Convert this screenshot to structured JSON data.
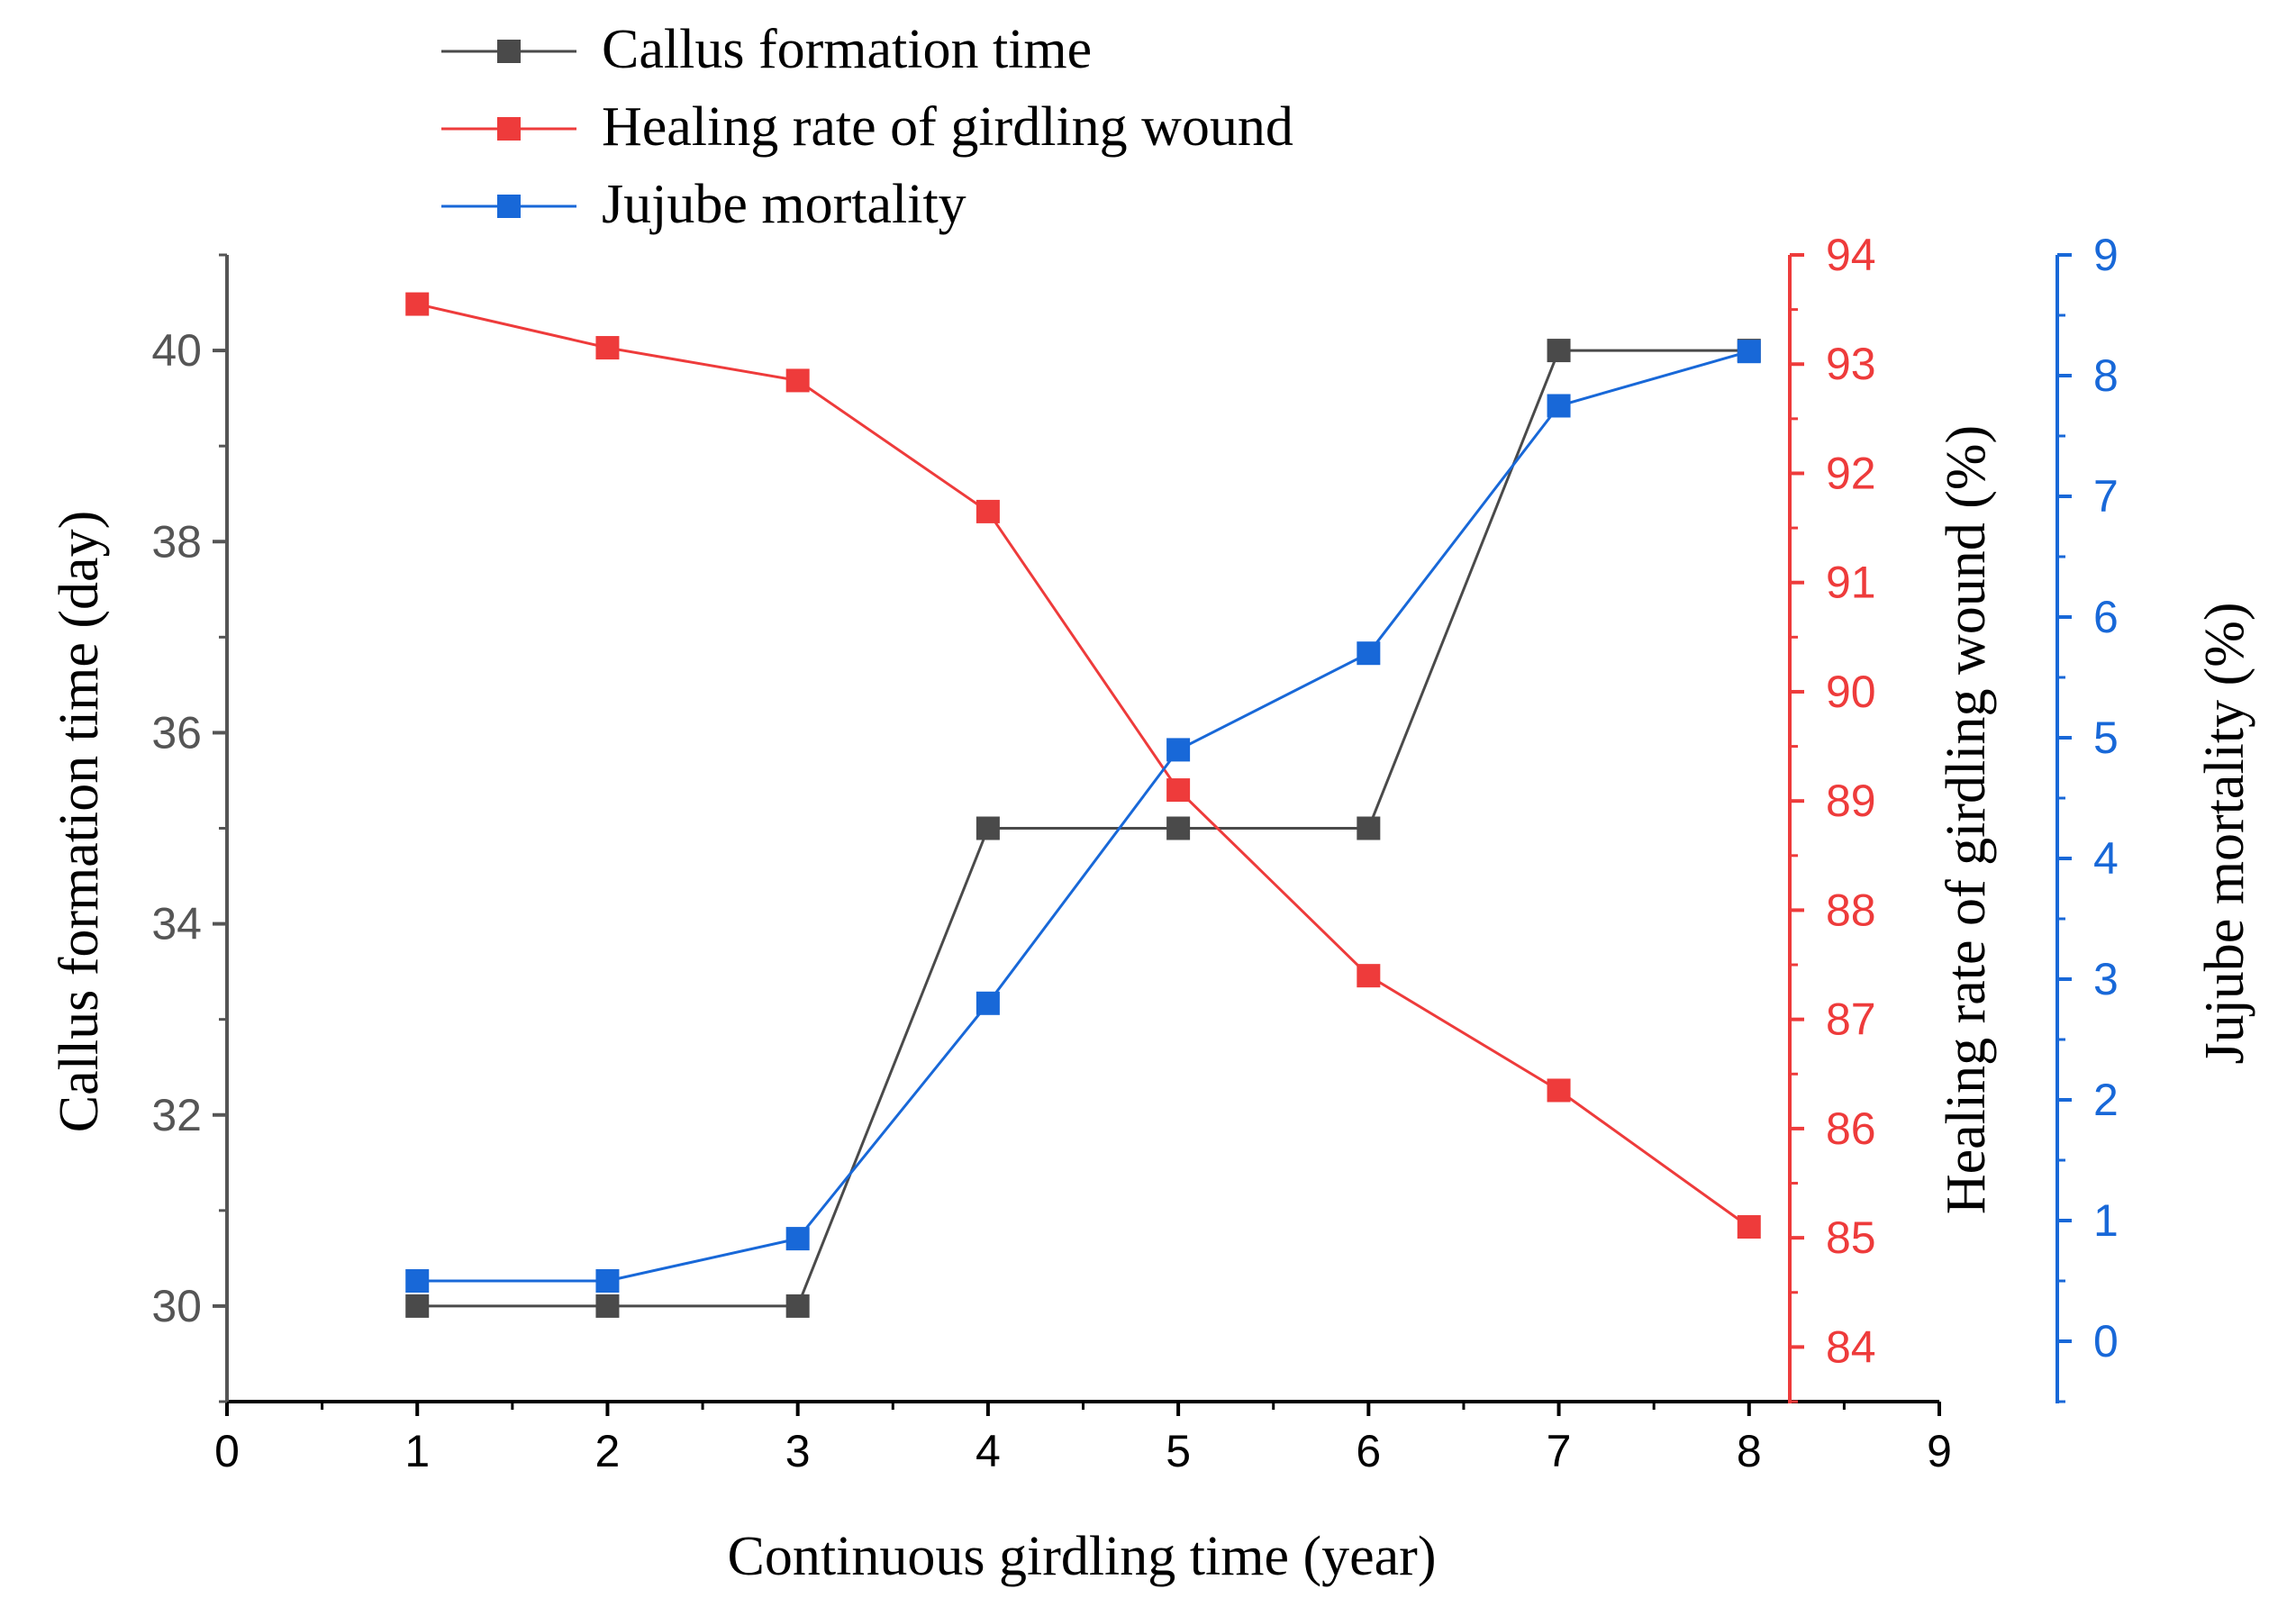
{
  "chart_data": {
    "type": "line",
    "title": "",
    "xlabel": "Continuous girdling time (year)",
    "xlim": [
      0,
      9
    ],
    "xticks": [
      0,
      1,
      2,
      3,
      4,
      5,
      6,
      7,
      8,
      9
    ],
    "x": [
      1,
      2,
      3,
      4,
      5,
      6,
      7,
      8
    ],
    "grid": false,
    "legend_position": "top-center",
    "axes": {
      "left": {
        "label": "Callus formation time (day)",
        "min": 29,
        "max": 41,
        "ticks": [
          30,
          32,
          34,
          36,
          38,
          40
        ],
        "color": "#000000",
        "tick_color": "#555555"
      },
      "right1": {
        "label": "Healing rate of girdling wound (%)",
        "min": 83.5,
        "max": 94,
        "ticks": [
          84,
          85,
          86,
          87,
          88,
          89,
          90,
          91,
          92,
          93,
          94
        ],
        "color": "#e8393b"
      },
      "right2": {
        "label": "Jujube mortality (%)",
        "min": -0.5,
        "max": 9,
        "ticks": [
          0,
          1,
          2,
          3,
          4,
          5,
          6,
          7,
          8,
          9
        ],
        "color": "#1868d8"
      }
    },
    "series": [
      {
        "name": "Callus formation time",
        "axis": "left",
        "color": "#4a4a4a",
        "values": [
          30,
          30,
          30,
          35,
          35,
          35,
          40,
          40
        ]
      },
      {
        "name": "Healing rate of girdling wound",
        "axis": "right1",
        "color": "#ee3b3b",
        "values": [
          93.55,
          93.15,
          92.85,
          91.65,
          89.1,
          87.4,
          86.35,
          85.1
        ]
      },
      {
        "name": "Jujube mortality",
        "axis": "right2",
        "color": "#1868d8",
        "values": [
          0.5,
          0.5,
          0.85,
          2.8,
          4.9,
          5.7,
          7.75,
          8.2
        ]
      }
    ]
  }
}
